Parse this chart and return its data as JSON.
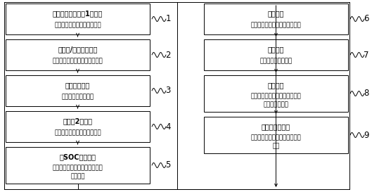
{
  "left_boxes": [
    {
      "title": "电池注液静置后第1次整平",
      "subtitle": "约束时间、约束温度、约束力",
      "subtitle2": "",
      "number": "1"
    },
    {
      "title": "防护性/预防性预充电",
      "subtitle": "约束电流、约束电压、约束时间",
      "subtitle2": "",
      "number": "2"
    },
    {
      "title": "高温陈化浸润",
      "subtitle": "控制环境温度、时间",
      "subtitle2": "",
      "number": "3"
    },
    {
      "title": "电池第2次整平",
      "subtitle": "约束时间、约束温度、约束力",
      "subtitle2": "",
      "number": "4"
    },
    {
      "title": "低SOC化成充电",
      "subtitle": "约束压力、约束温度、约束电流",
      "subtitle2": "约束电压",
      "number": "5"
    }
  ],
  "right_boxes": [
    {
      "title": "高温老化",
      "subtitle": "约束压力、约束温度、约束时间",
      "subtitle2": "",
      "number": "6"
    },
    {
      "title": "常温老化",
      "subtitle": "约束温度、约束时间",
      "subtitle2": "",
      "number": "7"
    },
    {
      "title": "真空封口",
      "subtitle": "约束真空度、约束保压时间、约",
      "subtitle2": "束氮气保持时间",
      "number": "8"
    },
    {
      "title": "化成满电充放电",
      "subtitle": "约束电压、约束电流、约束循环",
      "subtitle2": "次数",
      "number": "9"
    }
  ],
  "box_facecolor": "#ffffff",
  "box_edgecolor": "#000000",
  "text_color": "#000000",
  "line_color": "#000000",
  "bg_color": "#ffffff",
  "title_fontsize": 7.0,
  "subtitle_fontsize": 6.2,
  "number_fontsize": 8.5,
  "lw": 0.7
}
